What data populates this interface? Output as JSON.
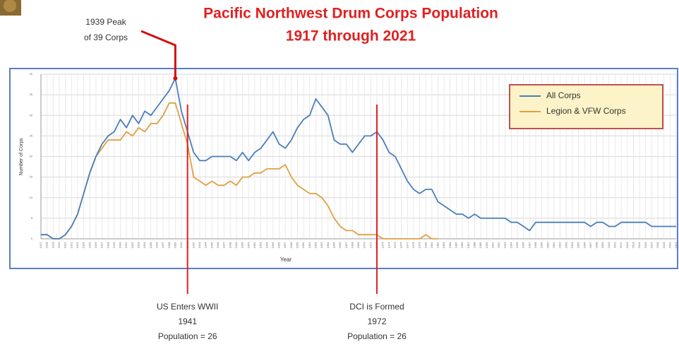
{
  "chart_data": {
    "type": "line",
    "title": [
      "Pacific Northwest Drum Corps Population",
      "1917 through 2021"
    ],
    "ylabel": "Number of Corps",
    "xlabel": "Year",
    "x": [
      1917,
      1918,
      1919,
      1920,
      1921,
      1922,
      1923,
      1924,
      1925,
      1926,
      1927,
      1928,
      1929,
      1930,
      1931,
      1932,
      1933,
      1934,
      1935,
      1936,
      1937,
      1938,
      1939,
      1940,
      1941,
      1942,
      1943,
      1944,
      1945,
      1946,
      1947,
      1948,
      1949,
      1950,
      1951,
      1952,
      1953,
      1954,
      1955,
      1956,
      1957,
      1958,
      1959,
      1960,
      1961,
      1962,
      1963,
      1964,
      1965,
      1966,
      1967,
      1968,
      1969,
      1970,
      1971,
      1972,
      1973,
      1974,
      1975,
      1976,
      1977,
      1978,
      1979,
      1980,
      1981,
      1982,
      1983,
      1984,
      1985,
      1986,
      1987,
      1988,
      1989,
      1990,
      1991,
      1992,
      1993,
      1994,
      1995,
      1996,
      1997,
      1998,
      1999,
      2000,
      2001,
      2002,
      2003,
      2004,
      2005,
      2006,
      2007,
      2008,
      2009,
      2010,
      2011,
      2012,
      2013,
      2014,
      2015,
      2016,
      2017,
      2018,
      2019,
      2020,
      2021
    ],
    "xlim": [
      1917,
      2021
    ],
    "xticks": [
      1917,
      1918,
      1919,
      1920,
      1921,
      1922,
      1923,
      1924,
      1925,
      1926,
      1927,
      1928,
      1929,
      1930,
      1931,
      1932,
      1933,
      1934,
      1935,
      1936,
      1937,
      1938,
      1939,
      1940,
      1941,
      1942,
      1943,
      1944,
      1945,
      1946,
      1947,
      1948,
      1949,
      1950,
      1951,
      1952,
      1953,
      1954,
      1955,
      1956,
      1957,
      1958,
      1959,
      1960,
      1961,
      1962,
      1963,
      1964,
      1965,
      1966,
      1967,
      1968,
      1969,
      1970,
      1971,
      1972,
      1973,
      1974,
      1975,
      1976,
      1977,
      1978,
      1979,
      1980,
      1981,
      1982,
      1983,
      1984,
      1985,
      1986,
      1987,
      1988,
      1989,
      1990,
      1991,
      1992,
      1993,
      1994,
      1995,
      1996,
      1997,
      1998,
      1999,
      2000,
      2001,
      2002,
      2003,
      2004,
      2005,
      2006,
      2007,
      2008,
      2009,
      2010,
      2011,
      2012,
      2013,
      2014,
      2015,
      2016,
      2017,
      2018,
      2019,
      2020,
      2021
    ],
    "ylim": [
      0,
      40
    ],
    "yticks": [
      0,
      5,
      10,
      15,
      20,
      25,
      30,
      35,
      40
    ],
    "grid": true,
    "legend": "upper right",
    "series": [
      {
        "name": "All Corps",
        "color": "#4a7ebb",
        "values": [
          1,
          1,
          0,
          0,
          1,
          3,
          6,
          11,
          16,
          20,
          23,
          25,
          26,
          29,
          27,
          30,
          28,
          31,
          30,
          32,
          34,
          36,
          39,
          31,
          26,
          21,
          19,
          19,
          20,
          20,
          20,
          20,
          19,
          21,
          19,
          21,
          22,
          24,
          26,
          23,
          22,
          24,
          27,
          29,
          30,
          34,
          32,
          30,
          24,
          23,
          23,
          21,
          23,
          25,
          25,
          26,
          24,
          21,
          20,
          17,
          14,
          12,
          11,
          12,
          12,
          9,
          8,
          7,
          6,
          6,
          5,
          6,
          5,
          5,
          5,
          5,
          5,
          4,
          4,
          3,
          2,
          4,
          4,
          4,
          4,
          4,
          4,
          4,
          4,
          4,
          3,
          4,
          4,
          3,
          3,
          4,
          4,
          4,
          4,
          4,
          3,
          3,
          3,
          3,
          3
        ]
      },
      {
        "name": "Legion & VFW Corps",
        "color": "#e0a040",
        "values": [
          1,
          1,
          0,
          0,
          1,
          3,
          6,
          11,
          16,
          20,
          22,
          24,
          24,
          24,
          26,
          25,
          27,
          26,
          28,
          28,
          30,
          33,
          33,
          28,
          23,
          15,
          14,
          13,
          14,
          13,
          13,
          14,
          13,
          15,
          15,
          16,
          16,
          17,
          17,
          17,
          18,
          15,
          13,
          12,
          11,
          11,
          10,
          8,
          5,
          3,
          2,
          2,
          1,
          1,
          1,
          1,
          0,
          0,
          0,
          0,
          0,
          0,
          0,
          1,
          0,
          0,
          null,
          null,
          null,
          null,
          null,
          null,
          null,
          null,
          null,
          null,
          null,
          null,
          null,
          null,
          null,
          null,
          null,
          null,
          null,
          null,
          null,
          null,
          null,
          null,
          null,
          null,
          null,
          null,
          null,
          null,
          null,
          null,
          null,
          null,
          null,
          null,
          null,
          null,
          null
        ]
      }
    ],
    "annotations": [
      {
        "year": 1939,
        "lines": [
          "1939 Peak",
          "of 39 Corps"
        ]
      },
      {
        "year": 1941,
        "lines": [
          "US Enters WWII",
          "1941",
          "Population = 26"
        ]
      },
      {
        "year": 1972,
        "lines": [
          "DCI is Formed",
          "1972",
          "Population = 26"
        ]
      }
    ]
  }
}
